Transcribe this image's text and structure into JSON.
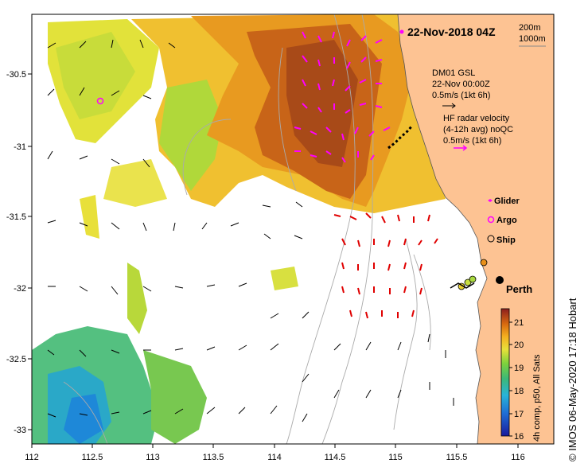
{
  "title": "22-Nov-2018 04Z",
  "depth_legend": {
    "line1": "200m",
    "line2": "1000m"
  },
  "model_info": {
    "line1": "DM01 GSL",
    "line2": "22-Nov 00:00Z",
    "scale": "0.5m/s (1kt 6h)"
  },
  "radar_info": {
    "line1": "HF radar velocity",
    "line2": "(4-12h avg) noQC",
    "scale": "0.5m/s (1kt 6h)"
  },
  "legend": {
    "glider": "Glider",
    "argo": "Argo",
    "ship": "Ship"
  },
  "city": "Perth",
  "colorbar": {
    "label": "4h comp, p50, All Sats",
    "ticks": [
      "21",
      "20",
      "19",
      "18",
      "17",
      "16"
    ],
    "min": 16,
    "max": 21.5
  },
  "axes": {
    "lon_ticks": [
      "112",
      "112.5",
      "113",
      "113.5",
      "114",
      "114.5",
      "115",
      "115.5",
      "116"
    ],
    "lat_ticks": [
      "-30.5",
      "-31",
      "-31.5",
      "-32",
      "-32.5",
      "-33"
    ]
  },
  "credit": "© IMOS 06-May-2020 17:18 Hobart",
  "colors": {
    "land": "#fdc393",
    "model_arrow": "#000000",
    "radar_offshore": "#ff00ff",
    "radar_nearshore": "#e00000",
    "argo": "#ff00ff"
  }
}
